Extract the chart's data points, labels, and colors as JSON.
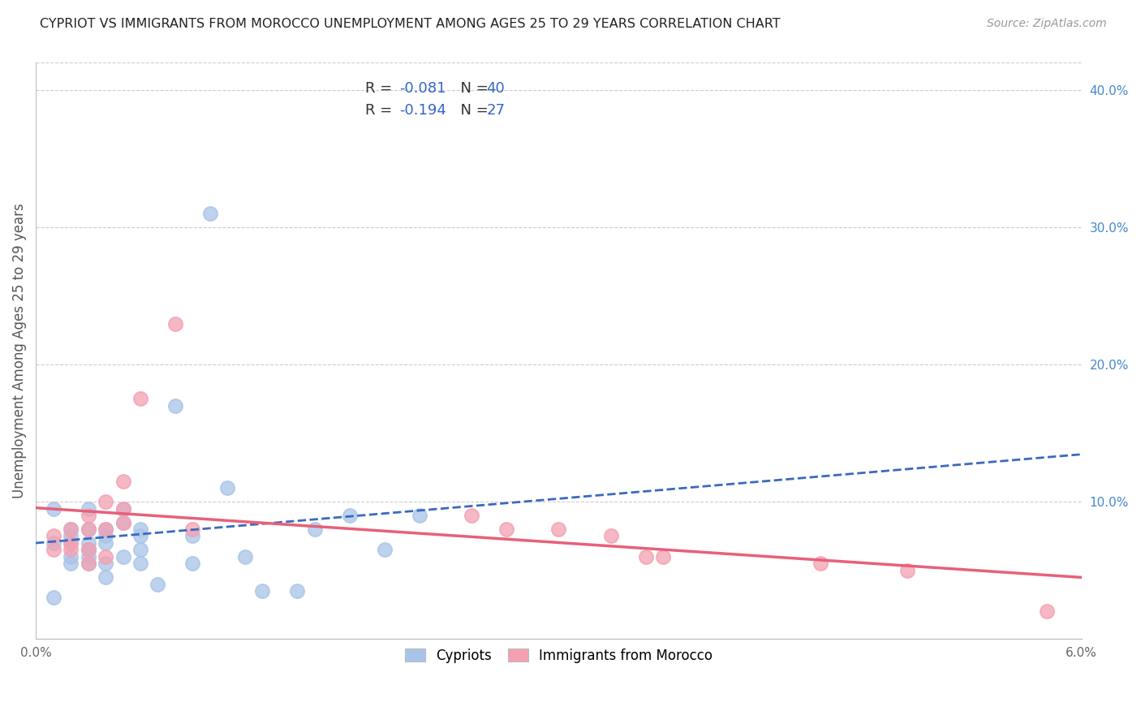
{
  "title": "CYPRIOT VS IMMIGRANTS FROM MOROCCO UNEMPLOYMENT AMONG AGES 25 TO 29 YEARS CORRELATION CHART",
  "source": "Source: ZipAtlas.com",
  "ylabel": "Unemployment Among Ages 25 to 29 years",
  "xlim": [
    0.0,
    0.06
  ],
  "ylim": [
    0.0,
    0.42
  ],
  "yticks_right": [
    0.0,
    0.1,
    0.2,
    0.3,
    0.4
  ],
  "ytick_labels_right": [
    "",
    "10.0%",
    "20.0%",
    "30.0%",
    "40.0%"
  ],
  "color_cypriot": "#a8c4e8",
  "color_morocco": "#f4a0b0",
  "trendline_cypriot_color": "#3a6abf",
  "trendline_morocco_color": "#e8607a",
  "background_color": "#ffffff",
  "grid_color": "#cccccc",
  "cypriot_x": [
    0.001,
    0.001,
    0.001,
    0.002,
    0.002,
    0.002,
    0.002,
    0.002,
    0.003,
    0.003,
    0.003,
    0.003,
    0.003,
    0.003,
    0.003,
    0.004,
    0.004,
    0.004,
    0.004,
    0.004,
    0.005,
    0.005,
    0.005,
    0.006,
    0.006,
    0.006,
    0.006,
    0.007,
    0.008,
    0.009,
    0.009,
    0.01,
    0.011,
    0.012,
    0.013,
    0.015,
    0.016,
    0.018,
    0.02,
    0.022
  ],
  "cypriot_y": [
    0.095,
    0.07,
    0.03,
    0.08,
    0.075,
    0.07,
    0.06,
    0.055,
    0.095,
    0.08,
    0.07,
    0.065,
    0.065,
    0.06,
    0.055,
    0.08,
    0.075,
    0.07,
    0.055,
    0.045,
    0.095,
    0.085,
    0.06,
    0.08,
    0.075,
    0.065,
    0.055,
    0.04,
    0.17,
    0.075,
    0.055,
    0.31,
    0.11,
    0.06,
    0.035,
    0.035,
    0.08,
    0.09,
    0.065,
    0.09
  ],
  "morocco_x": [
    0.001,
    0.001,
    0.002,
    0.002,
    0.002,
    0.003,
    0.003,
    0.003,
    0.003,
    0.004,
    0.004,
    0.004,
    0.005,
    0.005,
    0.005,
    0.006,
    0.008,
    0.009,
    0.025,
    0.027,
    0.03,
    0.033,
    0.035,
    0.036,
    0.045,
    0.05,
    0.058
  ],
  "morocco_y": [
    0.075,
    0.065,
    0.08,
    0.07,
    0.065,
    0.09,
    0.08,
    0.065,
    0.055,
    0.1,
    0.08,
    0.06,
    0.115,
    0.095,
    0.085,
    0.175,
    0.23,
    0.08,
    0.09,
    0.08,
    0.08,
    0.075,
    0.06,
    0.06,
    0.055,
    0.05,
    0.02
  ]
}
